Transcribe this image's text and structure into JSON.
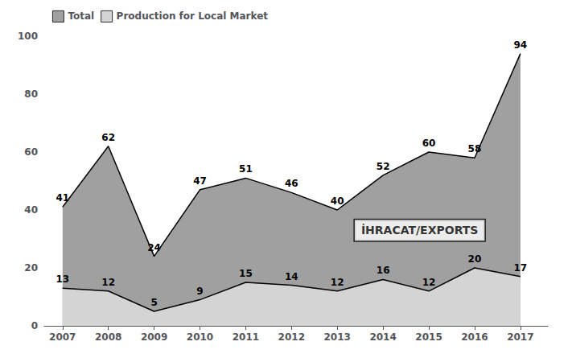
{
  "chart_data": {
    "type": "area",
    "x": [
      2007,
      2008,
      2009,
      2010,
      2011,
      2012,
      2013,
      2014,
      2015,
      2016,
      2017
    ],
    "series": [
      {
        "name": "Total",
        "color": "#a0a0a0",
        "values": [
          41,
          62,
          24,
          47,
          51,
          46,
          40,
          52,
          60,
          58,
          94
        ]
      },
      {
        "name": "Production for Local Market",
        "color": "#d4d4d4",
        "values": [
          13,
          12,
          5,
          9,
          15,
          14,
          12,
          16,
          12,
          20,
          17
        ]
      }
    ],
    "xlim": [
      2006.6,
      2017.6
    ],
    "xticks": [
      2007,
      2008,
      2009,
      2010,
      2011,
      2012,
      2013,
      2014,
      2015,
      2016,
      2017
    ],
    "ylim": [
      0,
      100
    ],
    "yticks": [
      0,
      20,
      40,
      60,
      80,
      100
    ],
    "data_labels": true,
    "grid": false,
    "legend": "upper left",
    "annotations": [
      {
        "text": "İHRACAT/EXPORTS",
        "x": 2014.8,
        "y": 33
      }
    ]
  }
}
